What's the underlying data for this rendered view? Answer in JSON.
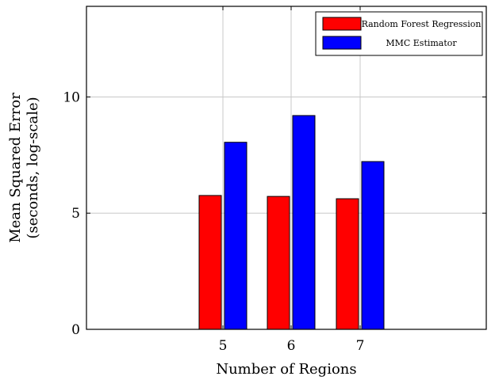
{
  "chart_data": {
    "type": "bar",
    "categories": [
      "5",
      "6",
      "7"
    ],
    "series": [
      {
        "name": "Random Forest Regression",
        "color": "#ff0000",
        "values": [
          5.76,
          5.72,
          5.62
        ]
      },
      {
        "name": "MMC Estimator",
        "color": "#0000ff",
        "values": [
          8.05,
          9.2,
          7.22
        ]
      }
    ],
    "xlabel": "Number of Regions",
    "ylabel": [
      "Mean Squared Error",
      "(seconds, log-scale)"
    ],
    "yticks": [
      0,
      5,
      10
    ],
    "ylim": [
      0,
      13.9
    ],
    "grid": true,
    "legend_position": "top-right"
  }
}
